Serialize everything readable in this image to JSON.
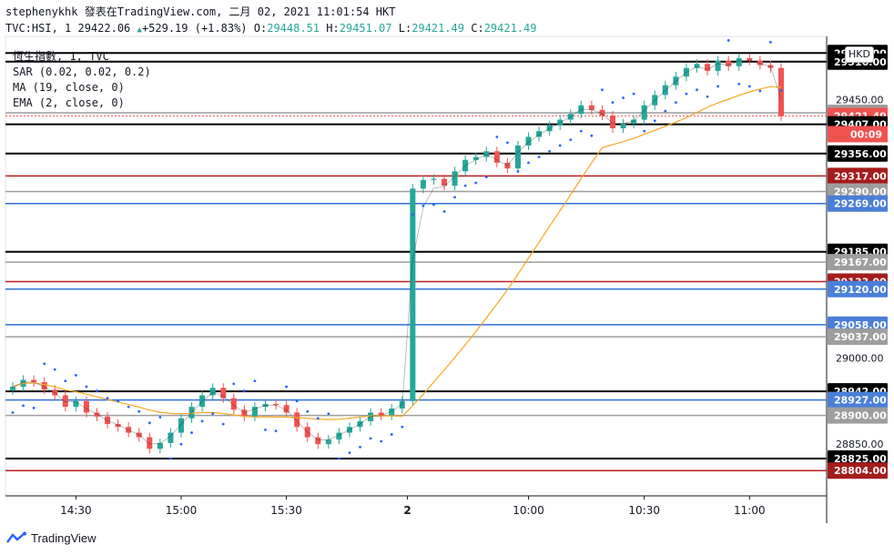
{
  "header": {
    "line1": "stephenykhk 發表在TradingView.com, 二月 02, 2021 11:01:54 HKT",
    "symbol_prefix": "TVC:HSI, 1",
    "last": "29422.06",
    "change": "+529.19 (+1.83%)",
    "o_label": "O:",
    "o_value": "29448.51",
    "h_label": "H:",
    "h_value": "29451.07",
    "l_label": "L:",
    "l_value": "29421.49",
    "c_label": "C:",
    "c_value": "29421.49"
  },
  "legend": {
    "title": "恆生指數, 1, TVC",
    "sar": "SAR (0.02, 0.02, 0.2)",
    "ma": "MA (19, close, 0)",
    "ema": "EMA (2, close, 0)"
  },
  "currency": "HKD",
  "countdown": "00:09",
  "brand": "TradingView",
  "colors": {
    "up": "#26a69a",
    "down": "#ef5350",
    "sar": "#2962ff",
    "ma": "#f5a623",
    "level_black": "#000000",
    "level_blue": "#2f6fd6",
    "level_red": "#b71c1c",
    "level_gray": "#9e9e9e"
  },
  "chart_data": {
    "type": "candlestick",
    "y_range": [
      28760,
      29560
    ],
    "x_ticks": [
      "14:30",
      "15:00",
      "15:30",
      "2",
      "10:00",
      "10:30",
      "11:00"
    ],
    "y_ticks": [
      "29450.00",
      "29000.00",
      "28850.00"
    ],
    "price_levels": [
      {
        "value": 29531.0,
        "label": "29531.00",
        "color": "black"
      },
      {
        "value": 29516.0,
        "label": "29516.00",
        "color": "black"
      },
      {
        "value": 29427.0,
        "label": "29427.00",
        "color": "gray"
      },
      {
        "value": 29421.49,
        "label": "29421.49",
        "color": "down"
      },
      {
        "value": 29407.0,
        "label": "29407.00",
        "color": "black"
      },
      {
        "value": 29356.0,
        "label": "29356.00",
        "color": "black"
      },
      {
        "value": 29317.0,
        "label": "29317.00",
        "color": "red"
      },
      {
        "value": 29290.0,
        "label": "29290.00",
        "color": "gray"
      },
      {
        "value": 29269.0,
        "label": "29269.00",
        "color": "blue"
      },
      {
        "value": 29185.0,
        "label": "29185.00",
        "color": "black"
      },
      {
        "value": 29167.0,
        "label": "29167.00",
        "color": "gray"
      },
      {
        "value": 29133.0,
        "label": "29133.00",
        "color": "red"
      },
      {
        "value": 29120.0,
        "label": "29120.00",
        "color": "blue"
      },
      {
        "value": 29058.0,
        "label": "29058.00",
        "color": "blue"
      },
      {
        "value": 29037.0,
        "label": "29037.00",
        "color": "gray"
      },
      {
        "value": 28942.0,
        "label": "28942.00",
        "color": "black"
      },
      {
        "value": 28927.0,
        "label": "28927.00",
        "color": "blue"
      },
      {
        "value": 28900.0,
        "label": "28900.00",
        "color": "gray"
      },
      {
        "value": 28825.0,
        "label": "28825.00",
        "color": "black"
      },
      {
        "value": 28804.0,
        "label": "28804.00",
        "color": "red"
      }
    ],
    "close_series": [
      28950,
      28962,
      28958,
      28945,
      28935,
      28915,
      28925,
      28905,
      28898,
      28885,
      28880,
      28870,
      28862,
      28842,
      28852,
      28870,
      28895,
      28915,
      28935,
      28948,
      28930,
      28910,
      28898,
      28915,
      28920,
      28918,
      28905,
      28880,
      28862,
      28850,
      28858,
      28870,
      28880,
      28890,
      28905,
      28900,
      28912,
      28925,
      29295,
      29310,
      29312,
      29300,
      29325,
      29345,
      29350,
      29360,
      29340,
      29330,
      29370,
      29385,
      29395,
      29405,
      29415,
      29425,
      29440,
      29432,
      29422,
      29400,
      29408,
      29415,
      29440,
      29458,
      29475,
      29490,
      29505,
      29512,
      29500,
      29518,
      29508,
      29522,
      29518,
      29510,
      29505,
      29421
    ]
  }
}
